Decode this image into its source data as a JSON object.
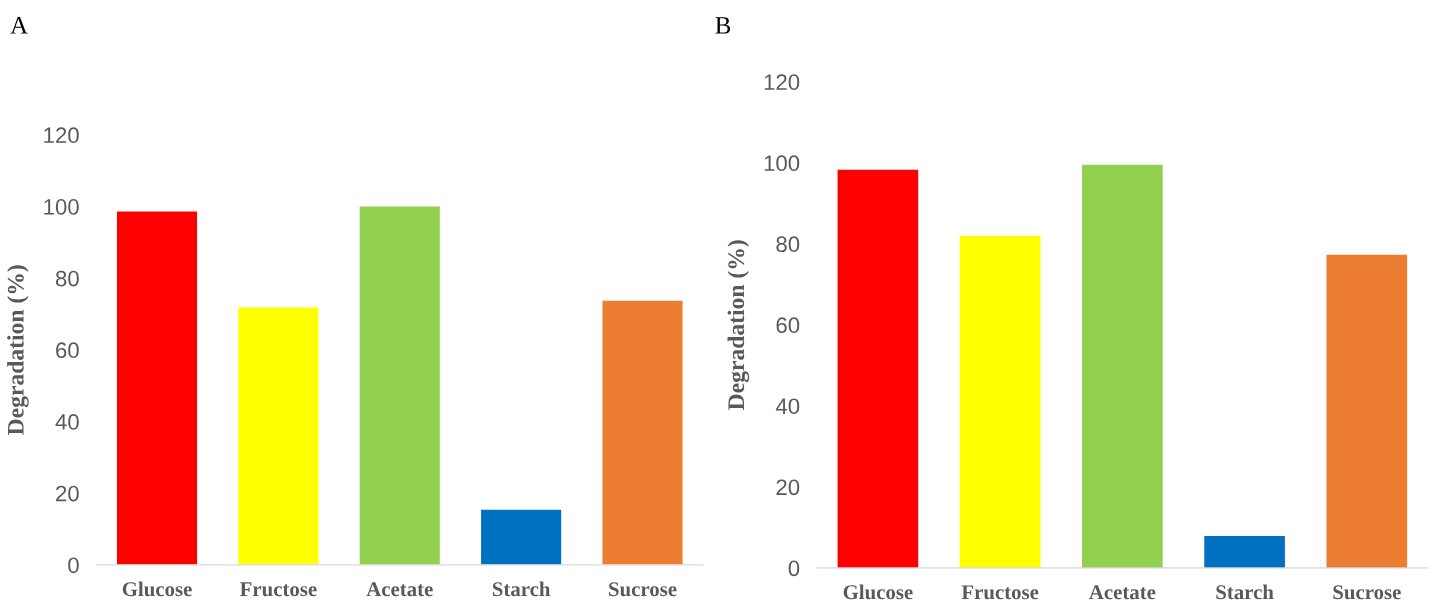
{
  "chart_data": [
    {
      "type": "bar",
      "title": "A",
      "ylabel": "Degradation (%)",
      "categories": [
        "Glucose",
        "Fructose",
        "Acetate",
        "Starch",
        "Sucrose"
      ],
      "values": [
        98.6,
        71.8,
        100,
        15.4,
        73.7
      ],
      "colors": [
        "#ff0000",
        "#ffff00",
        "#92d050",
        "#0070c0",
        "#ed7d31"
      ],
      "ylim": [
        0,
        120
      ],
      "yticks": [
        0,
        20,
        40,
        60,
        80,
        100,
        120
      ],
      "grid": false,
      "legend": false
    },
    {
      "type": "bar",
      "title": "B",
      "ylabel": "Degradation (%)",
      "categories": [
        "Glucose",
        "Fructose",
        "Acetate",
        "Starch",
        "Sucrose"
      ],
      "values": [
        98.3,
        82,
        99.5,
        7.9,
        77.3
      ],
      "colors": [
        "#ff0000",
        "#ffff00",
        "#92d050",
        "#0070c0",
        "#ed7d31"
      ],
      "ylim": [
        0,
        120
      ],
      "yticks": [
        0,
        20,
        40,
        60,
        80,
        100,
        120
      ],
      "grid": false,
      "legend": false
    }
  ]
}
